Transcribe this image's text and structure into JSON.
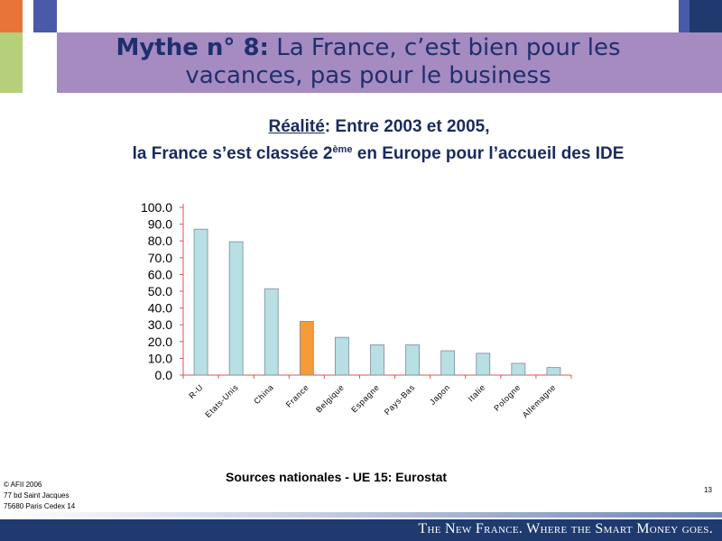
{
  "title": {
    "bold": "Mythe n° 8:",
    "rest": "La France, c’est bien pour les vacances, pas pour le business"
  },
  "subtitle": {
    "line1_underlined": "Réalité",
    "line1_rest": ": Entre 2003 et 2005,",
    "line2_pre": "la France s’est classée 2",
    "line2_sup": "ème",
    "line2_post": " en Europe pour l’accueil des IDE"
  },
  "source": "Sources nationales - UE 15: Eurostat",
  "address": [
    "© AFII 2006",
    "77 bd Saint Jacques",
    "75680 Paris Cedex 14"
  ],
  "page_number": "13",
  "tagline": "The New France. Where the Smart Money goes.",
  "colors": {
    "title_band": "#a58bc0",
    "bar_default": "#b7dfe4",
    "bar_highlight": "#f79a3a",
    "axis": "#e05050",
    "footer": "#1e3a6e"
  },
  "chart_data": {
    "type": "bar",
    "categories": [
      "R-U",
      "Etats-Unis",
      "China",
      "France",
      "Belgique",
      "Espagne",
      "Pays-Bas",
      "Japon",
      "Italie",
      "Pologne",
      "Allemagne"
    ],
    "values": [
      87.0,
      79.5,
      51.5,
      32.0,
      22.5,
      18.0,
      18.0,
      14.5,
      13.0,
      7.0,
      4.5
    ],
    "highlight_index": 3,
    "ylim": [
      0,
      100
    ],
    "yticks": [
      "0.0",
      "10.0",
      "20.0",
      "30.0",
      "40.0",
      "50.0",
      "60.0",
      "70.0",
      "80.0",
      "90.0",
      "100.0"
    ],
    "title": "",
    "xlabel": "",
    "ylabel": "",
    "grid": false
  }
}
